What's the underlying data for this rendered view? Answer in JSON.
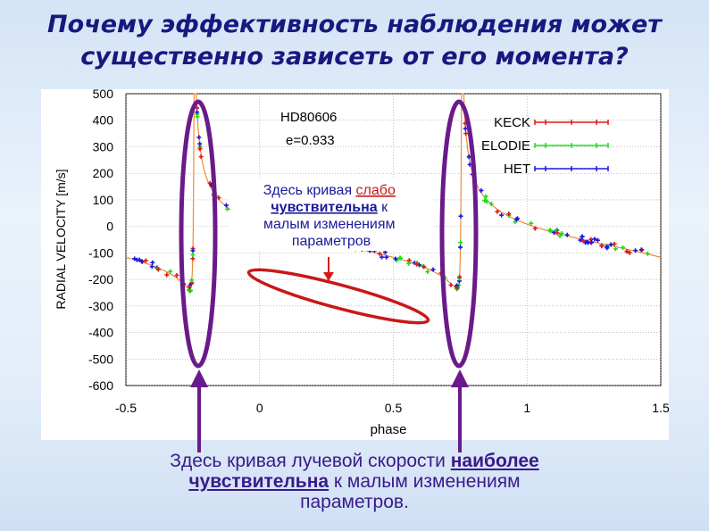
{
  "title": {
    "line1": "Почему эффективность наблюдения может",
    "line2": "существенно зависеть от его момента?"
  },
  "chart_data": {
    "type": "scatter",
    "object_label": "HD80606",
    "eccentricity_label": "e=0.933",
    "xlabel": "phase",
    "ylabel": "RADIAL VELOCITY  [m/s]",
    "xlim": [
      -0.5,
      1.5
    ],
    "ylim": [
      -600,
      500
    ],
    "xticks": [
      "-0.5",
      "0",
      "0.5",
      "1",
      "1.5"
    ],
    "yticks": [
      "500",
      "400",
      "300",
      "200",
      "100",
      "0",
      "-100",
      "-200",
      "-300",
      "-400",
      "-500",
      "-600"
    ],
    "legend_position": "top-right",
    "series": [
      {
        "name": "KECK",
        "color": "#e01818"
      },
      {
        "name": "ELODIE",
        "color": "#18e018"
      },
      {
        "name": "HET",
        "color": "#1818e0"
      }
    ],
    "model_curve_color": "#f08a3a"
  },
  "annotations": {
    "inner_caption": {
      "line1_pre": "Здесь кривая ",
      "line1_under": "слабо",
      "line2_under": "чувствительна",
      "line2_post": " к",
      "line3": "малым изменениям",
      "line4": "параметров"
    },
    "bottom_caption": {
      "line1_pre": "Здесь кривая лучевой скорости ",
      "line1_under": "наиболее",
      "line2_under": "чувствительна",
      "line2_post": " к малым изменениям",
      "line3": "параметров."
    },
    "colors": {
      "ellipse_purple": "#6a1a8a",
      "ellipse_red": "#c81818",
      "arrow_red": "#d81818",
      "arrow_purple": "#6a1a8a"
    }
  }
}
